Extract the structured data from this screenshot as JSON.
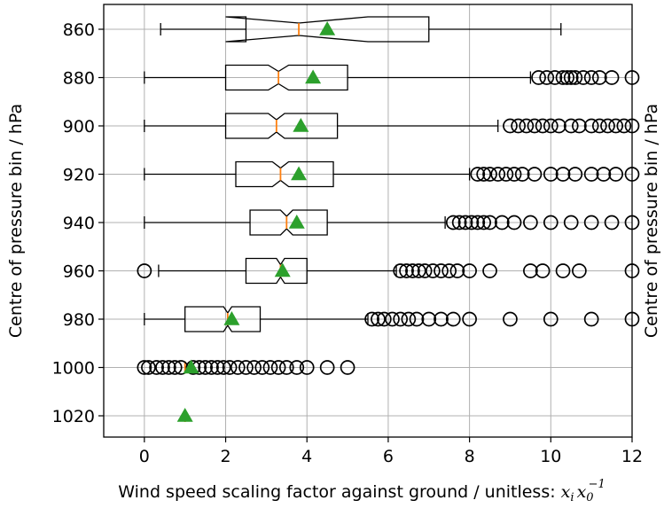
{
  "chart_data": {
    "type": "boxplot",
    "orientation": "horizontal",
    "notched": true,
    "grid": true,
    "xlabel": "Wind speed scaling factor against ground / unitless: ",
    "xlabel_math": {
      "x": "x",
      "i": "i",
      "x0": "x",
      "zero": "0",
      "minus_one": "−1"
    },
    "ylabel": "Centre of pressure bin / hPa",
    "ylabel_right": "Centre of pressure bin / hPa",
    "xlim": [
      -1,
      12
    ],
    "xticks": [
      0,
      2,
      4,
      6,
      8,
      10,
      12
    ],
    "categories": [
      "860",
      "880",
      "900",
      "920",
      "940",
      "960",
      "980",
      "1000",
      "1020"
    ],
    "colors": {
      "median": "#ff7f0e",
      "mean": "#2ca02c",
      "box": "#000000",
      "grid": "#b0b0b0"
    },
    "boxes": [
      {
        "label": "860",
        "whisker_low": 0.4,
        "q1": 2.5,
        "median": 3.8,
        "q3": 7.0,
        "whisker_high": 10.25,
        "mean": 4.5,
        "notch_low": 2.0,
        "notch_high": 5.5,
        "outliers": []
      },
      {
        "label": "880",
        "whisker_low": 0.0,
        "q1": 2.0,
        "median": 3.3,
        "q3": 5.0,
        "whisker_high": 9.5,
        "mean": 4.15,
        "notch_low": 3.05,
        "notch_high": 3.55,
        "outliers": [
          9.7,
          9.9,
          10.1,
          10.3,
          10.4,
          10.5,
          10.6,
          10.8,
          11.0,
          11.2,
          11.5,
          12.0
        ]
      },
      {
        "label": "900",
        "whisker_low": 0.0,
        "q1": 2.0,
        "median": 3.25,
        "q3": 4.75,
        "whisker_high": 8.7,
        "mean": 3.85,
        "notch_low": 3.05,
        "notch_high": 3.45,
        "outliers": [
          9.0,
          9.2,
          9.4,
          9.6,
          9.8,
          10.0,
          10.2,
          10.5,
          10.7,
          11.0,
          11.2,
          11.4,
          11.6,
          11.8,
          12.0
        ]
      },
      {
        "label": "920",
        "whisker_low": 0.0,
        "q1": 2.25,
        "median": 3.35,
        "q3": 4.65,
        "whisker_high": 8.0,
        "mean": 3.8,
        "notch_low": 3.15,
        "notch_high": 3.55,
        "outliers": [
          8.2,
          8.35,
          8.5,
          8.7,
          8.9,
          9.1,
          9.3,
          9.6,
          10.0,
          10.3,
          10.6,
          11.0,
          11.3,
          11.6,
          12.0
        ]
      },
      {
        "label": "940",
        "whisker_low": 0.0,
        "q1": 2.6,
        "median": 3.5,
        "q3": 4.5,
        "whisker_high": 7.4,
        "mean": 3.75,
        "notch_low": 3.35,
        "notch_high": 3.65,
        "outliers": [
          7.6,
          7.75,
          7.9,
          8.05,
          8.2,
          8.35,
          8.5,
          8.8,
          9.1,
          9.5,
          10.0,
          10.5,
          11.0,
          11.5,
          12.0
        ]
      },
      {
        "label": "960",
        "whisker_low": 0.35,
        "q1": 2.5,
        "median": 3.35,
        "q3": 4.0,
        "whisker_high": 6.2,
        "mean": 3.4,
        "notch_low": 3.25,
        "notch_high": 3.45,
        "outliers": [
          0.0,
          6.3,
          6.45,
          6.6,
          6.75,
          6.9,
          7.1,
          7.3,
          7.5,
          7.7,
          8.0,
          8.5,
          9.5,
          9.8,
          10.3,
          10.7,
          12.0
        ]
      },
      {
        "label": "980",
        "whisker_low": 0.0,
        "q1": 1.0,
        "median": 2.05,
        "q3": 2.85,
        "whisker_high": 5.5,
        "mean": 2.15,
        "notch_low": 1.95,
        "notch_high": 2.15,
        "outliers": [
          5.6,
          5.75,
          5.9,
          6.1,
          6.3,
          6.5,
          6.7,
          7.0,
          7.3,
          7.6,
          8.0,
          9.0,
          10.0,
          11.0,
          12.0
        ]
      },
      {
        "label": "1000",
        "whisker_low": 1.0,
        "q1": 1.0,
        "median": 1.0,
        "q3": 1.0,
        "whisker_high": 1.0,
        "mean": 1.15,
        "notch_low": 1.0,
        "notch_high": 1.0,
        "outliers": [
          0.0,
          0.1,
          0.3,
          0.45,
          0.6,
          0.75,
          0.9,
          1.2,
          1.35,
          1.5,
          1.65,
          1.8,
          1.95,
          2.1,
          2.3,
          2.5,
          2.7,
          2.9,
          3.1,
          3.3,
          3.5,
          3.75,
          4.0,
          4.5,
          5.0
        ]
      },
      {
        "label": "1020",
        "whisker_low": 1.0,
        "q1": 1.0,
        "median": 1.0,
        "q3": 1.0,
        "whisker_high": 1.0,
        "mean": 1.0,
        "notch_low": 1.0,
        "notch_high": 1.0,
        "outliers": []
      }
    ]
  }
}
